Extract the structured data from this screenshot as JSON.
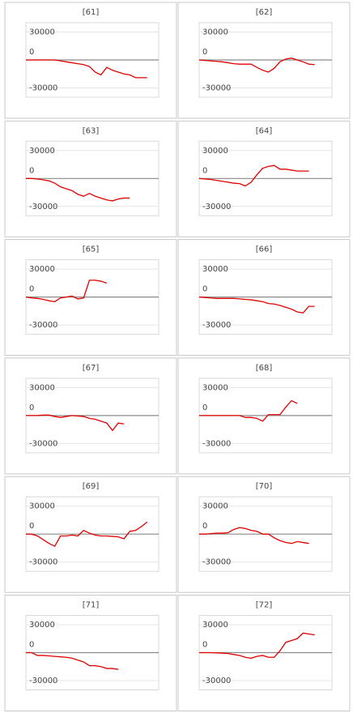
{
  "chart_data": [
    {
      "type": "line",
      "title": "[61]",
      "categories": [
        null,
        null,
        null,
        null,
        null,
        null,
        null,
        null,
        null,
        null,
        null,
        null,
        null,
        null,
        null,
        null,
        null,
        null,
        null,
        null,
        null,
        null,
        null,
        null
      ],
      "series": [
        {
          "color": "#e00000",
          "values": [
            0,
            0,
            0,
            0,
            0,
            0,
            -1000,
            -2000,
            -3000,
            -4000,
            -5000,
            -7000,
            -13000,
            -16000,
            -8000,
            -11000,
            -13000,
            -15000,
            -16000,
            -19000,
            -19000,
            -19000,
            null,
            null
          ]
        }
      ],
      "ylim": [
        -40000,
        40000
      ],
      "yticks": [
        30000,
        0,
        -30000
      ],
      "grid": true
    },
    {
      "type": "line",
      "title": "[62]",
      "categories": [
        null,
        null,
        null,
        null,
        null,
        null,
        null,
        null,
        null,
        null,
        null,
        null,
        null,
        null,
        null,
        null,
        null,
        null,
        null,
        null,
        null,
        null,
        null,
        null
      ],
      "series": [
        {
          "color": "#e00000",
          "values": [
            0,
            -500,
            -1000,
            -1500,
            -2000,
            -3000,
            -4000,
            -4500,
            -4500,
            -4500,
            -8000,
            -11000,
            -13000,
            -9000,
            -2000,
            1000,
            2000,
            0,
            -2000,
            -4500,
            -5000,
            null,
            null,
            null
          ]
        }
      ],
      "ylim": [
        -40000,
        40000
      ],
      "yticks": [
        30000,
        0,
        -30000
      ],
      "grid": true
    },
    {
      "type": "line",
      "title": "[63]",
      "categories": [
        null,
        null,
        null,
        null,
        null,
        null,
        null,
        null,
        null,
        null,
        null,
        null,
        null,
        null,
        null,
        null,
        null,
        null,
        null,
        null,
        null,
        null,
        null,
        null
      ],
      "series": [
        {
          "color": "#e00000",
          "values": [
            0,
            0,
            -500,
            -1500,
            -2500,
            -5000,
            -9000,
            -11000,
            -13000,
            -17000,
            -19000,
            -16000,
            -19000,
            -21000,
            -23000,
            -24000,
            -22000,
            -21000,
            -21000,
            null,
            null,
            null,
            null,
            null
          ]
        }
      ],
      "ylim": [
        -40000,
        40000
      ],
      "yticks": [
        30000,
        0,
        -30000
      ],
      "grid": true
    },
    {
      "type": "line",
      "title": "[64]",
      "categories": [
        null,
        null,
        null,
        null,
        null,
        null,
        null,
        null,
        null,
        null,
        null,
        null,
        null,
        null,
        null,
        null,
        null,
        null,
        null,
        null,
        null,
        null,
        null,
        null
      ],
      "series": [
        {
          "color": "#e00000",
          "values": [
            0,
            -500,
            -1000,
            -2000,
            -3000,
            -4000,
            -5000,
            -5500,
            -8000,
            -4000,
            4000,
            11000,
            13000,
            14000,
            10000,
            10000,
            9000,
            8000,
            8000,
            8000,
            null,
            null,
            null,
            null
          ]
        }
      ],
      "ylim": [
        -40000,
        40000
      ],
      "yticks": [
        30000,
        0,
        -30000
      ],
      "grid": true
    },
    {
      "type": "line",
      "title": "[65]",
      "categories": [
        null,
        null,
        null,
        null,
        null,
        null,
        null,
        null,
        null,
        null,
        null,
        null,
        null,
        null,
        null,
        null,
        null,
        null,
        null,
        null,
        null,
        null,
        null,
        null
      ],
      "series": [
        {
          "color": "#e00000",
          "values": [
            0,
            -1000,
            -1500,
            -2500,
            -4000,
            -5000,
            -1000,
            0,
            1000,
            -2000,
            -1000,
            18000,
            18000,
            17000,
            15000,
            null,
            null,
            null,
            null,
            null,
            null,
            null,
            null,
            null
          ]
        }
      ],
      "ylim": [
        -40000,
        40000
      ],
      "yticks": [
        30000,
        0,
        -30000
      ],
      "grid": true
    },
    {
      "type": "line",
      "title": "[66]",
      "categories": [
        null,
        null,
        null,
        null,
        null,
        null,
        null,
        null,
        null,
        null,
        null,
        null,
        null,
        null,
        null,
        null,
        null,
        null,
        null,
        null,
        null,
        null,
        null,
        null
      ],
      "series": [
        {
          "color": "#e00000",
          "values": [
            0,
            -500,
            -1000,
            -1500,
            -1500,
            -1500,
            -1500,
            -2000,
            -2500,
            -3000,
            -4000,
            -5000,
            -7000,
            -7500,
            -9000,
            -11000,
            -13000,
            -16000,
            -17000,
            -10000,
            -10000,
            null,
            null,
            null
          ]
        }
      ],
      "ylim": [
        -40000,
        40000
      ],
      "yticks": [
        30000,
        0,
        -30000
      ],
      "grid": true
    },
    {
      "type": "line",
      "title": "[67]",
      "categories": [
        null,
        null,
        null,
        null,
        null,
        null,
        null,
        null,
        null,
        null,
        null,
        null,
        null,
        null,
        null,
        null,
        null,
        null,
        null,
        null,
        null,
        null,
        null,
        null
      ],
      "series": [
        {
          "color": "#e00000",
          "values": [
            0,
            0,
            0,
            500,
            500,
            -1000,
            -2000,
            -1000,
            0,
            -500,
            -1000,
            -3000,
            -4000,
            -6000,
            -8000,
            -16000,
            -8000,
            -9000,
            null,
            null,
            null,
            null,
            null,
            null
          ]
        }
      ],
      "ylim": [
        -40000,
        40000
      ],
      "yticks": [
        30000,
        0,
        -30000
      ],
      "grid": true
    },
    {
      "type": "line",
      "title": "[68]",
      "categories": [
        null,
        null,
        null,
        null,
        null,
        null,
        null,
        null,
        null,
        null,
        null,
        null,
        null,
        null,
        null,
        null,
        null,
        null,
        null,
        null,
        null,
        null,
        null,
        null
      ],
      "series": [
        {
          "color": "#e00000",
          "values": [
            0,
            0,
            0,
            0,
            0,
            0,
            0,
            0,
            -2000,
            -2000,
            -3000,
            -6000,
            1000,
            1000,
            1000,
            9000,
            16000,
            13000,
            null,
            null,
            null,
            null,
            null,
            null
          ]
        }
      ],
      "ylim": [
        -40000,
        40000
      ],
      "yticks": [
        30000,
        0,
        -30000
      ],
      "grid": true
    },
    {
      "type": "line",
      "title": "[69]",
      "categories": [
        null,
        null,
        null,
        null,
        null,
        null,
        null,
        null,
        null,
        null,
        null,
        null,
        null,
        null,
        null,
        null,
        null,
        null,
        null,
        null,
        null,
        null,
        null,
        null
      ],
      "series": [
        {
          "color": "#e00000",
          "values": [
            0,
            0,
            -2000,
            -6000,
            -10000,
            -13000,
            -2000,
            -2000,
            -1000,
            -2000,
            4000,
            1000,
            -1000,
            -2000,
            -2000,
            -2500,
            -3000,
            -5000,
            3000,
            4000,
            8000,
            13000,
            null,
            null
          ]
        }
      ],
      "ylim": [
        -40000,
        40000
      ],
      "yticks": [
        30000,
        0,
        -30000
      ],
      "grid": true
    },
    {
      "type": "line",
      "title": "[70]",
      "categories": [
        null,
        null,
        null,
        null,
        null,
        null,
        null,
        null,
        null,
        null,
        null,
        null,
        null,
        null,
        null,
        null,
        null,
        null,
        null,
        null,
        null,
        null,
        null,
        null
      ],
      "series": [
        {
          "color": "#e00000",
          "values": [
            0,
            0,
            500,
            1000,
            1000,
            1500,
            5000,
            7000,
            6000,
            4000,
            3000,
            0,
            0,
            -4000,
            -7000,
            -9000,
            -10000,
            -8000,
            -9000,
            -10000,
            null,
            null,
            null,
            null
          ]
        }
      ],
      "ylim": [
        -40000,
        40000
      ],
      "yticks": [
        30000,
        0,
        -30000
      ],
      "grid": true
    },
    {
      "type": "line",
      "title": "[71]",
      "categories": [
        null,
        null,
        null,
        null,
        null,
        null,
        null,
        null,
        null,
        null,
        null,
        null,
        null,
        null,
        null,
        null,
        null,
        null,
        null,
        null,
        null,
        null,
        null,
        null
      ],
      "series": [
        {
          "color": "#e00000",
          "values": [
            0,
            0,
            -3000,
            -3000,
            -3500,
            -4000,
            -4500,
            -5000,
            -6000,
            -8000,
            -10000,
            -14000,
            -14000,
            -15000,
            -17000,
            -17000,
            -18000,
            null,
            null,
            null,
            null,
            null,
            null,
            null
          ]
        }
      ],
      "ylim": [
        -40000,
        40000
      ],
      "yticks": [
        30000,
        0,
        -30000
      ],
      "grid": true
    },
    {
      "type": "line",
      "title": "[72]",
      "categories": [
        null,
        null,
        null,
        null,
        null,
        null,
        null,
        null,
        null,
        null,
        null,
        null,
        null,
        null,
        null,
        null,
        null,
        null,
        null,
        null,
        null,
        null,
        null,
        null
      ],
      "series": [
        {
          "color": "#e00000",
          "values": [
            0,
            0,
            0,
            -300,
            -500,
            -1000,
            -2000,
            -3000,
            -5000,
            -6000,
            -4000,
            -3000,
            -5000,
            -5000,
            2000,
            11000,
            13000,
            15000,
            21000,
            20000,
            19000,
            null,
            null,
            null
          ]
        }
      ],
      "ylim": [
        -40000,
        40000
      ],
      "yticks": [
        30000,
        0,
        -30000
      ],
      "grid": true
    }
  ]
}
